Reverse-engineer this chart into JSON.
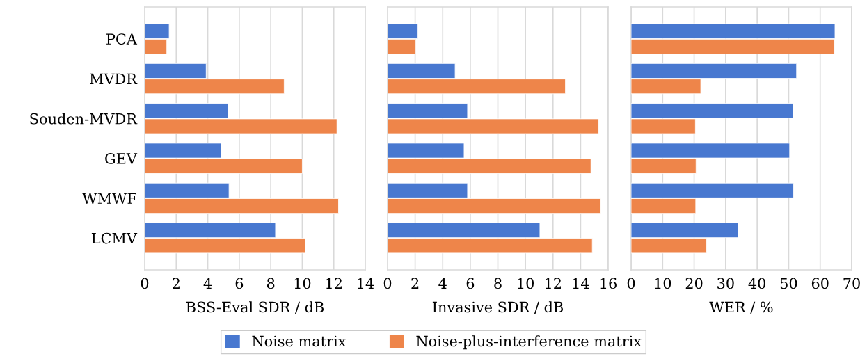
{
  "chart_data": [
    {
      "type": "bar",
      "orientation": "horizontal",
      "xlabel": "BSS-Eval SDR / dB",
      "categories": [
        "PCA",
        "MVDR",
        "Souden-MVDR",
        "GEV",
        "WMWF",
        "LCMV"
      ],
      "xlim": [
        0,
        14
      ],
      "xticks": [
        0,
        2,
        4,
        6,
        8,
        10,
        12,
        14
      ],
      "grid": "x",
      "legend": "bottom",
      "series": [
        {
          "name": "Noise matrix",
          "color": "#4878d0",
          "values": [
            1.55,
            3.9,
            5.3,
            4.85,
            5.35,
            8.3
          ]
        },
        {
          "name": "Noise-plus-interference matrix",
          "color": "#ee854a",
          "values": [
            1.4,
            8.85,
            12.2,
            10.0,
            12.3,
            10.2
          ]
        }
      ]
    },
    {
      "type": "bar",
      "orientation": "horizontal",
      "xlabel": "Invasive SDR / dB",
      "categories": [
        null,
        null,
        null,
        null,
        null,
        null
      ],
      "xlim": [
        0,
        16
      ],
      "xticks": [
        0,
        2,
        4,
        6,
        8,
        10,
        12,
        14,
        16
      ],
      "grid": "x",
      "series": [
        {
          "color": "#4878d0",
          "values": [
            2.2,
            4.9,
            5.8,
            5.55,
            5.8,
            11.05
          ]
        },
        {
          "color": "#ee854a",
          "values": [
            2.05,
            12.9,
            15.3,
            14.75,
            15.45,
            14.85
          ]
        }
      ]
    },
    {
      "type": "bar",
      "orientation": "horizontal",
      "xlabel": "WER / %",
      "categories": [
        null,
        null,
        null,
        null,
        null,
        null
      ],
      "xlim": [
        0,
        70
      ],
      "xticks": [
        0,
        10,
        20,
        30,
        40,
        50,
        60,
        70
      ],
      "grid": "x",
      "series": [
        {
          "color": "#4878d0",
          "values": [
            64.7,
            52.5,
            51.4,
            50.3,
            51.5,
            33.9
          ]
        },
        {
          "color": "#ee854a",
          "values": [
            64.5,
            22.1,
            20.4,
            20.6,
            20.5,
            23.9
          ]
        }
      ]
    }
  ]
}
